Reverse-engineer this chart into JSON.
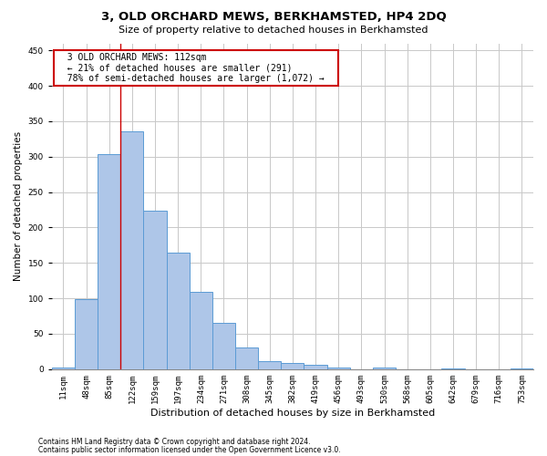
{
  "title": "3, OLD ORCHARD MEWS, BERKHAMSTED, HP4 2DQ",
  "subtitle": "Size of property relative to detached houses in Berkhamsted",
  "xlabel": "Distribution of detached houses by size in Berkhamsted",
  "ylabel": "Number of detached properties",
  "footnote1": "Contains HM Land Registry data © Crown copyright and database right 2024.",
  "footnote2": "Contains public sector information licensed under the Open Government Licence v3.0.",
  "bar_labels": [
    "11sqm",
    "48sqm",
    "85sqm",
    "122sqm",
    "159sqm",
    "197sqm",
    "234sqm",
    "271sqm",
    "308sqm",
    "345sqm",
    "382sqm",
    "419sqm",
    "456sqm",
    "493sqm",
    "530sqm",
    "568sqm",
    "605sqm",
    "642sqm",
    "679sqm",
    "716sqm",
    "753sqm"
  ],
  "bar_values": [
    3,
    99,
    303,
    336,
    224,
    164,
    109,
    65,
    31,
    11,
    9,
    6,
    3,
    0,
    2,
    0,
    0,
    1,
    0,
    0,
    1
  ],
  "bar_color": "#aec6e8",
  "bar_edge_color": "#5b9bd5",
  "grid_color": "#c8c8c8",
  "property_line_x": 2.5,
  "annotation_text": "  3 OLD ORCHARD MEWS: 112sqm  \n  ← 21% of detached houses are smaller (291)  \n  78% of semi-detached houses are larger (1,072) →  ",
  "annotation_box_color": "#ffffff",
  "annotation_box_edge_color": "#cc0000",
  "property_line_color": "#cc0000",
  "ylim": [
    0,
    460
  ],
  "yticks": [
    0,
    50,
    100,
    150,
    200,
    250,
    300,
    350,
    400,
    450
  ],
  "background_color": "#ffffff",
  "title_fontsize": 9.5,
  "subtitle_fontsize": 8,
  "ylabel_fontsize": 7.5,
  "xlabel_fontsize": 8,
  "tick_fontsize": 6.5,
  "annot_fontsize": 7,
  "footnote_fontsize": 5.5
}
